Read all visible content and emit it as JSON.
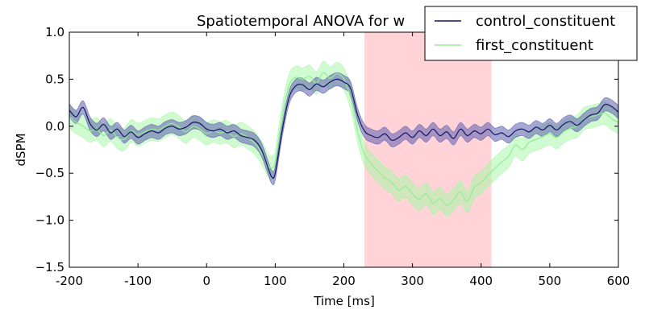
{
  "chart_data": {
    "type": "line",
    "title": "Spatiotemporal ANOVA for w",
    "xlabel": "Time [ms]",
    "ylabel": "dSPM",
    "xlim": [
      -200,
      600
    ],
    "ylim": [
      -1.5,
      1.0
    ],
    "xticks": [
      -200,
      -100,
      0,
      100,
      200,
      300,
      400,
      500,
      600
    ],
    "xtick_labels": [
      "-200",
      "-100",
      "0",
      "100",
      "200",
      "300",
      "400",
      "500",
      "600"
    ],
    "yticks": [
      1.0,
      0.5,
      0.0,
      -0.5,
      -1.0,
      -1.5
    ],
    "ytick_labels": [
      "1.0",
      "0.5",
      "0.0",
      "−0.5",
      "−1.0",
      "−1.5"
    ],
    "grid": false,
    "legend_position": "top-right",
    "highlight_span": {
      "x0": 230,
      "x1": 415,
      "color": "#ff9da6"
    },
    "series": [
      {
        "name": "control_constituent",
        "color": "#141466",
        "band_color": "#5f5fae",
        "points": [
          [
            -200,
            0.17
          ],
          [
            -190,
            0.1
          ],
          [
            -180,
            0.2
          ],
          [
            -170,
            0.03
          ],
          [
            -160,
            -0.04
          ],
          [
            -150,
            0.02
          ],
          [
            -140,
            -0.07
          ],
          [
            -130,
            -0.03
          ],
          [
            -120,
            -0.11
          ],
          [
            -110,
            -0.06
          ],
          [
            -100,
            -0.12
          ],
          [
            -90,
            -0.08
          ],
          [
            -80,
            -0.05
          ],
          [
            -70,
            -0.07
          ],
          [
            -60,
            -0.02
          ],
          [
            -50,
            0.0
          ],
          [
            -40,
            -0.03
          ],
          [
            -30,
            -0.01
          ],
          [
            -20,
            0.04
          ],
          [
            -10,
            0.03
          ],
          [
            0,
            -0.03
          ],
          [
            10,
            -0.05
          ],
          [
            20,
            -0.03
          ],
          [
            30,
            -0.07
          ],
          [
            40,
            -0.05
          ],
          [
            50,
            -0.1
          ],
          [
            60,
            -0.12
          ],
          [
            70,
            -0.15
          ],
          [
            80,
            -0.25
          ],
          [
            90,
            -0.45
          ],
          [
            95,
            -0.54
          ],
          [
            100,
            -0.5
          ],
          [
            110,
            -0.05
          ],
          [
            120,
            0.3
          ],
          [
            130,
            0.43
          ],
          [
            140,
            0.44
          ],
          [
            150,
            0.39
          ],
          [
            160,
            0.45
          ],
          [
            170,
            0.42
          ],
          [
            180,
            0.47
          ],
          [
            190,
            0.5
          ],
          [
            200,
            0.47
          ],
          [
            210,
            0.4
          ],
          [
            220,
            0.12
          ],
          [
            230,
            -0.05
          ],
          [
            240,
            -0.1
          ],
          [
            250,
            -0.12
          ],
          [
            260,
            -0.08
          ],
          [
            270,
            -0.15
          ],
          [
            280,
            -0.12
          ],
          [
            290,
            -0.07
          ],
          [
            300,
            -0.12
          ],
          [
            310,
            -0.05
          ],
          [
            320,
            -0.1
          ],
          [
            330,
            -0.03
          ],
          [
            340,
            -0.1
          ],
          [
            350,
            -0.06
          ],
          [
            360,
            -0.13
          ],
          [
            370,
            -0.03
          ],
          [
            380,
            -0.1
          ],
          [
            390,
            -0.05
          ],
          [
            400,
            -0.08
          ],
          [
            410,
            -0.03
          ],
          [
            420,
            -0.09
          ],
          [
            430,
            -0.07
          ],
          [
            440,
            -0.11
          ],
          [
            450,
            -0.05
          ],
          [
            460,
            -0.03
          ],
          [
            470,
            -0.06
          ],
          [
            480,
            -0.01
          ],
          [
            490,
            -0.04
          ],
          [
            500,
            0.01
          ],
          [
            510,
            -0.04
          ],
          [
            520,
            0.02
          ],
          [
            530,
            0.05
          ],
          [
            540,
            0.01
          ],
          [
            550,
            0.07
          ],
          [
            560,
            0.12
          ],
          [
            570,
            0.14
          ],
          [
            580,
            0.23
          ],
          [
            590,
            0.21
          ],
          [
            600,
            0.15
          ]
        ],
        "band_halfwidth": 0.07
      },
      {
        "name": "first_constituent",
        "color": "#90ee90",
        "band_color": "#aaf7aa",
        "points": [
          [
            -200,
            0.1
          ],
          [
            -190,
            0.04
          ],
          [
            -180,
            0.0
          ],
          [
            -170,
            -0.05
          ],
          [
            -160,
            -0.03
          ],
          [
            -150,
            -0.1
          ],
          [
            -140,
            -0.04
          ],
          [
            -130,
            -0.12
          ],
          [
            -120,
            -0.14
          ],
          [
            -110,
            -0.05
          ],
          [
            -100,
            -0.09
          ],
          [
            -90,
            -0.06
          ],
          [
            -80,
            -0.03
          ],
          [
            -70,
            -0.04
          ],
          [
            -60,
            0.0
          ],
          [
            -50,
            0.03
          ],
          [
            -40,
            -0.01
          ],
          [
            -30,
            -0.06
          ],
          [
            -20,
            0.0
          ],
          [
            -10,
            -0.03
          ],
          [
            0,
            -0.08
          ],
          [
            10,
            -0.05
          ],
          [
            20,
            -0.07
          ],
          [
            30,
            -0.06
          ],
          [
            40,
            -0.11
          ],
          [
            50,
            -0.08
          ],
          [
            60,
            -0.12
          ],
          [
            70,
            -0.18
          ],
          [
            80,
            -0.28
          ],
          [
            90,
            -0.42
          ],
          [
            95,
            -0.44
          ],
          [
            100,
            -0.38
          ],
          [
            110,
            0.1
          ],
          [
            120,
            0.43
          ],
          [
            130,
            0.52
          ],
          [
            140,
            0.5
          ],
          [
            150,
            0.53
          ],
          [
            160,
            0.46
          ],
          [
            170,
            0.57
          ],
          [
            180,
            0.51
          ],
          [
            190,
            0.56
          ],
          [
            200,
            0.5
          ],
          [
            210,
            0.3
          ],
          [
            220,
            -0.05
          ],
          [
            230,
            -0.3
          ],
          [
            240,
            -0.4
          ],
          [
            250,
            -0.48
          ],
          [
            260,
            -0.55
          ],
          [
            270,
            -0.6
          ],
          [
            280,
            -0.68
          ],
          [
            290,
            -0.64
          ],
          [
            300,
            -0.72
          ],
          [
            310,
            -0.78
          ],
          [
            320,
            -0.72
          ],
          [
            330,
            -0.82
          ],
          [
            340,
            -0.77
          ],
          [
            350,
            -0.84
          ],
          [
            360,
            -0.78
          ],
          [
            370,
            -0.7
          ],
          [
            380,
            -0.8
          ],
          [
            390,
            -0.65
          ],
          [
            400,
            -0.6
          ],
          [
            410,
            -0.52
          ],
          [
            420,
            -0.45
          ],
          [
            430,
            -0.38
          ],
          [
            440,
            -0.32
          ],
          [
            450,
            -0.2
          ],
          [
            460,
            -0.25
          ],
          [
            470,
            -0.17
          ],
          [
            480,
            -0.14
          ],
          [
            490,
            -0.11
          ],
          [
            500,
            -0.08
          ],
          [
            510,
            -0.12
          ],
          [
            520,
            -0.06
          ],
          [
            530,
            -0.02
          ],
          [
            540,
            0.0
          ],
          [
            550,
            0.08
          ],
          [
            560,
            0.1
          ],
          [
            570,
            0.12
          ],
          [
            580,
            0.14
          ],
          [
            590,
            0.08
          ],
          [
            600,
            0.04
          ]
        ],
        "band_halfwidth": 0.12
      }
    ]
  }
}
